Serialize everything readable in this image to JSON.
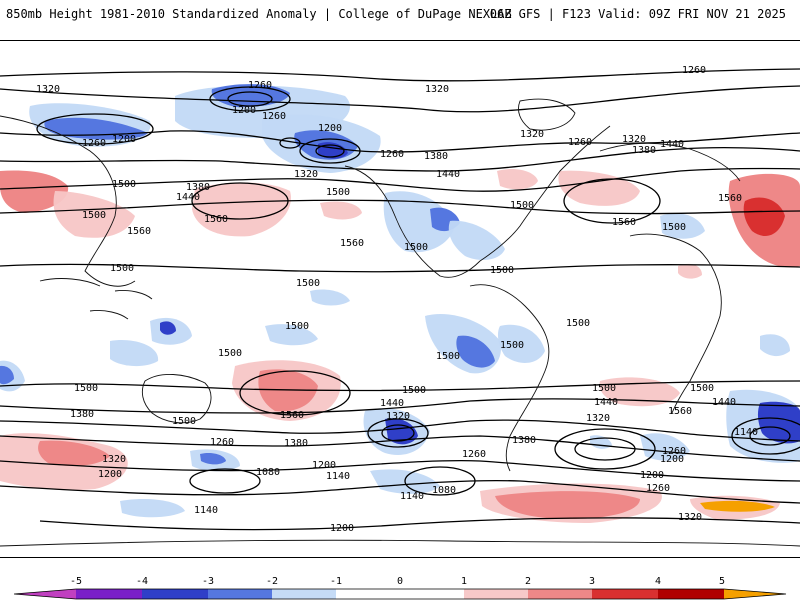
{
  "header": {
    "left": "850mb Height 1981-2010 Standardized Anomaly | College of DuPage NEXLAB",
    "right": "06Z GFS | F123 Valid: 09Z FRI NOV 21 2025"
  },
  "colors": {
    "neg5": "#c040c0",
    "neg4": "#7a1fc8",
    "neg3": "#2f3fc8",
    "neg2": "#5577e0",
    "neg1": "#c2d9f5",
    "zero": "#ffffff",
    "pos1": "#f7c6c6",
    "pos2": "#ee8888",
    "pos3": "#d93030",
    "pos4": "#b00000",
    "pos5": "#f5a000"
  },
  "contour_labels": [
    {
      "text": "1320",
      "icon": "label"
    },
    {
      "text": "1260",
      "icon": "label"
    },
    {
      "text": "1200",
      "icon": "label"
    },
    {
      "text": "1260",
      "icon": "label"
    },
    {
      "text": "1200",
      "icon": "label"
    },
    {
      "text": "1260",
      "icon": "label"
    },
    {
      "text": "1200",
      "icon": "label"
    },
    {
      "text": "1320",
      "icon": "label"
    },
    {
      "text": "1260",
      "icon": "label"
    },
    {
      "text": "1320",
      "icon": "label"
    },
    {
      "text": "1380",
      "icon": "label"
    },
    {
      "text": "1440",
      "icon": "label"
    },
    {
      "text": "1260",
      "icon": "label"
    },
    {
      "text": "1320",
      "icon": "label"
    },
    {
      "text": "1260",
      "icon": "label"
    },
    {
      "text": "1320",
      "icon": "label"
    },
    {
      "text": "1380",
      "icon": "label"
    },
    {
      "text": "1440",
      "icon": "label"
    },
    {
      "text": "1500",
      "icon": "label"
    },
    {
      "text": "1380",
      "icon": "label"
    },
    {
      "text": "1440",
      "icon": "label"
    },
    {
      "text": "1500",
      "icon": "label"
    },
    {
      "text": "1500",
      "icon": "label"
    },
    {
      "text": "1560",
      "icon": "label"
    },
    {
      "text": "1560",
      "icon": "label"
    },
    {
      "text": "1560",
      "icon": "label"
    },
    {
      "text": "1500",
      "icon": "label"
    },
    {
      "text": "1500",
      "icon": "label"
    },
    {
      "text": "1560",
      "icon": "label"
    },
    {
      "text": "1500",
      "icon": "label"
    },
    {
      "text": "1500",
      "icon": "label"
    },
    {
      "text": "1560",
      "icon": "label"
    },
    {
      "text": "1500",
      "icon": "label"
    },
    {
      "text": "1500",
      "icon": "label"
    },
    {
      "text": "1500",
      "icon": "label"
    },
    {
      "text": "1500",
      "icon": "label"
    },
    {
      "text": "1500",
      "icon": "label"
    },
    {
      "text": "1500",
      "icon": "label"
    },
    {
      "text": "1500",
      "icon": "label"
    },
    {
      "text": "1500",
      "icon": "label"
    },
    {
      "text": "1500",
      "icon": "label"
    },
    {
      "text": "1500",
      "icon": "label"
    },
    {
      "text": "1380",
      "icon": "label"
    },
    {
      "text": "1560",
      "icon": "label"
    },
    {
      "text": "1440",
      "icon": "label"
    },
    {
      "text": "1320",
      "icon": "label"
    },
    {
      "text": "1260",
      "icon": "label"
    },
    {
      "text": "1380",
      "icon": "label"
    },
    {
      "text": "1320",
      "icon": "label"
    },
    {
      "text": "1200",
      "icon": "label"
    },
    {
      "text": "1140",
      "icon": "label"
    },
    {
      "text": "1080",
      "icon": "label"
    },
    {
      "text": "1200",
      "icon": "label"
    },
    {
      "text": "1140",
      "icon": "label"
    },
    {
      "text": "1140",
      "icon": "label"
    },
    {
      "text": "1200",
      "icon": "label"
    },
    {
      "text": "1260",
      "icon": "label"
    },
    {
      "text": "1140",
      "icon": "label"
    },
    {
      "text": "1080",
      "icon": "label"
    },
    {
      "text": "1380",
      "icon": "label"
    },
    {
      "text": "1500",
      "icon": "label"
    },
    {
      "text": "1440",
      "icon": "label"
    },
    {
      "text": "1320",
      "icon": "label"
    },
    {
      "text": "1260",
      "icon": "label"
    },
    {
      "text": "1200",
      "icon": "label"
    },
    {
      "text": "1200",
      "icon": "label"
    },
    {
      "text": "1260",
      "icon": "label"
    },
    {
      "text": "1320",
      "icon": "label"
    },
    {
      "text": "1560",
      "icon": "label"
    },
    {
      "text": "1500",
      "icon": "label"
    },
    {
      "text": "1440",
      "icon": "label"
    },
    {
      "text": "1380",
      "icon": "label"
    },
    {
      "text": "1320",
      "icon": "label"
    },
    {
      "text": "1260",
      "icon": "label"
    },
    {
      "text": "1200",
      "icon": "label"
    },
    {
      "text": "1140",
      "icon": "label"
    }
  ],
  "colorbar": {
    "ticks": [
      "-5",
      "-4",
      "-3",
      "-2",
      "-1",
      "0",
      "1",
      "2",
      "3",
      "4",
      "5"
    ]
  }
}
